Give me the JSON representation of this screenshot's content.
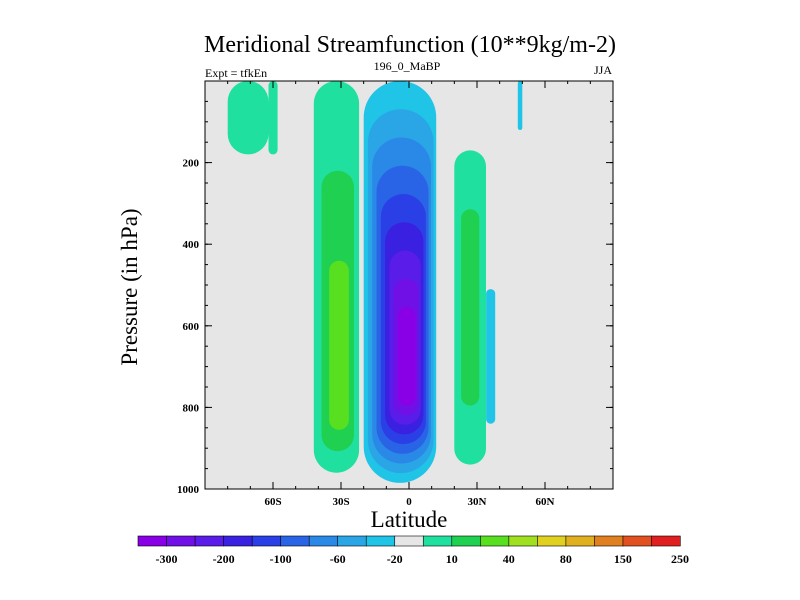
{
  "chart_data": {
    "type": "contour",
    "title": "Meridional Streamfunction (10**9kg/m-2)",
    "left_label": "Expt = tfkEn",
    "center_label": "196_0_MaBP",
    "right_label": "JJA",
    "xlabel": "Latitude",
    "ylabel": "Pressure (in hPa)",
    "xlim": [
      -90,
      90
    ],
    "ylim": [
      0,
      1000
    ],
    "y_reversed": true,
    "x_ticks": [
      {
        "value": -60,
        "label": "60S"
      },
      {
        "value": -30,
        "label": "30S"
      },
      {
        "value": 0,
        "label": "0"
      },
      {
        "value": 30,
        "label": "30N"
      },
      {
        "value": 60,
        "label": "60N"
      }
    ],
    "y_ticks": [
      {
        "value": 200,
        "label": "200"
      },
      {
        "value": 400,
        "label": "400"
      },
      {
        "value": 600,
        "label": "600"
      },
      {
        "value": 800,
        "label": "800"
      },
      {
        "value": 1000,
        "label": "1000"
      }
    ],
    "background_color": "#e6e6e6",
    "colorbar": {
      "colors": [
        "#8a00e6",
        "#7010e6",
        "#5a1ce8",
        "#3a20e0",
        "#2a40e6",
        "#2a64e6",
        "#2a88e6",
        "#2aa6e6",
        "#20c4e6",
        "#e6e6e6",
        "#20e0a0",
        "#20d050",
        "#58e020",
        "#a0e020",
        "#e0d020",
        "#e0b020",
        "#e08020",
        "#e05020",
        "#e02020"
      ],
      "labels": [
        "-300",
        "-200",
        "-100",
        "-60",
        "-20",
        "10",
        "40",
        "80",
        "150",
        "250"
      ]
    },
    "regions": [
      {
        "sign": "negative",
        "lat_range": [
          -20,
          12
        ],
        "p_range": [
          0,
          985
        ],
        "min_level_index": 0,
        "min_center": [
          0,
          700
        ]
      },
      {
        "sign": "positive",
        "lat_range": [
          -42,
          -22
        ],
        "p_range": [
          0,
          960
        ],
        "max_level_index": 12,
        "max_center": [
          -30,
          750
        ]
      },
      {
        "sign": "positive",
        "lat_range": [
          -80,
          -62
        ],
        "p_range": [
          0,
          180
        ],
        "max_level_index": 10
      },
      {
        "sign": "positive",
        "lat_range": [
          -62,
          -58
        ],
        "p_range": [
          0,
          180
        ],
        "max_level_index": 10
      },
      {
        "sign": "positive",
        "lat_range": [
          20,
          34
        ],
        "p_range": [
          170,
          940
        ],
        "max_level_index": 11
      },
      {
        "sign": "negative",
        "lat_range": [
          34,
          38
        ],
        "p_range": [
          510,
          840
        ],
        "min_level_index": 8
      },
      {
        "sign": "negative",
        "lat_range": [
          48,
          50
        ],
        "p_range": [
          0,
          120
        ],
        "min_level_index": 8
      }
    ]
  }
}
